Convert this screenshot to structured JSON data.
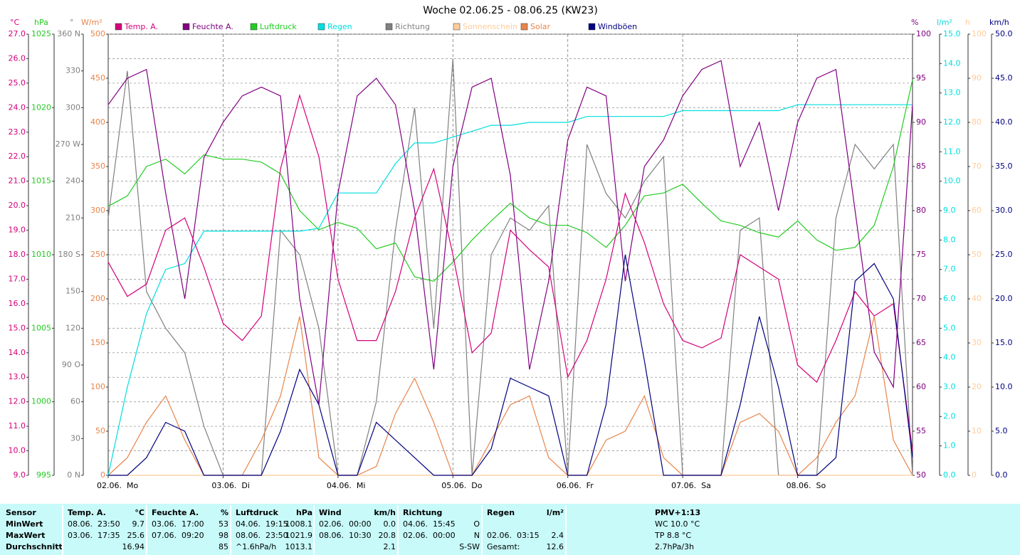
{
  "chart_data": {
    "type": "line",
    "title": "Woche 02.06.25 - 08.06.25 (KW23)",
    "grid": true,
    "xlim": [
      0,
      168
    ],
    "xticks": [
      {
        "value": 0,
        "label": "02.06.  Mo"
      },
      {
        "value": 24,
        "label": "03.06.  Di"
      },
      {
        "value": 48,
        "label": "04.06.  Mi"
      },
      {
        "value": 72,
        "label": "05.06.  Do"
      },
      {
        "value": 96,
        "label": "06.06.  Fr"
      },
      {
        "value": 120,
        "label": "07.06.  Sa"
      },
      {
        "value": 144,
        "label": "08.06.  So"
      }
    ],
    "x": [
      0,
      4,
      8,
      12,
      16,
      20,
      24,
      28,
      32,
      36,
      40,
      44,
      48,
      52,
      56,
      60,
      64,
      68,
      72,
      76,
      80,
      84,
      88,
      92,
      96,
      100,
      104,
      108,
      112,
      116,
      120,
      124,
      128,
      132,
      136,
      140,
      144,
      148,
      152,
      156,
      160,
      164,
      168
    ],
    "series": [
      {
        "name": "Temp. A.",
        "unit": "°C",
        "side": "left",
        "color": "#d4007a",
        "ylim": [
          9,
          27
        ],
        "yticks": [
          {
            "value": 9,
            "label": "9.0"
          },
          {
            "value": 10,
            "label": "10.0"
          },
          {
            "value": 11,
            "label": "11.0"
          },
          {
            "value": 12,
            "label": "12.0"
          },
          {
            "value": 13,
            "label": "13.0"
          },
          {
            "value": 14,
            "label": "14.0"
          },
          {
            "value": 15,
            "label": "15.0"
          },
          {
            "value": 16,
            "label": "16.0"
          },
          {
            "value": 17,
            "label": "17.0"
          },
          {
            "value": 18,
            "label": "18.0"
          },
          {
            "value": 19,
            "label": "19.0"
          },
          {
            "value": 20,
            "label": "20.0"
          },
          {
            "value": 21,
            "label": "21.0"
          },
          {
            "value": 22,
            "label": "22.0"
          },
          {
            "value": 23,
            "label": "23.0"
          },
          {
            "value": 24,
            "label": "24.0"
          },
          {
            "value": 25,
            "label": "25.0"
          },
          {
            "value": 26,
            "label": "26.0"
          },
          {
            "value": 27,
            "label": "27.0"
          }
        ],
        "values": [
          17.7,
          16.3,
          16.8,
          19.0,
          19.5,
          17.5,
          15.2,
          14.5,
          15.5,
          21.5,
          24.5,
          22.0,
          17.0,
          14.5,
          14.5,
          16.5,
          19.5,
          21.5,
          18.0,
          14.0,
          14.8,
          19.0,
          18.2,
          17.5,
          13.0,
          14.5,
          17.0,
          20.5,
          18.5,
          16.0,
          14.5,
          14.2,
          14.6,
          18.0,
          17.5,
          17.0,
          13.5,
          12.8,
          14.5,
          16.5,
          15.5,
          16.0,
          10.0
        ]
      },
      {
        "name": "Feuchte A.",
        "unit": "%",
        "side": "right",
        "color": "#800080",
        "ylim": [
          50,
          100
        ],
        "yticks": [
          50,
          55,
          60,
          65,
          70,
          75,
          80,
          85,
          90,
          95,
          100
        ],
        "values": [
          92,
          95,
          96,
          82,
          70,
          86,
          90,
          93,
          94,
          93,
          70,
          58,
          82,
          93,
          95,
          92,
          80,
          62,
          85,
          94,
          95,
          84,
          62,
          72,
          88,
          94,
          93,
          72,
          85,
          88,
          93,
          96,
          97,
          85,
          90,
          80,
          90,
          95,
          96,
          80,
          64,
          60,
          92
        ]
      },
      {
        "name": "Luftdruck",
        "unit": "hPa",
        "side": "left",
        "color": "#22cc22",
        "ylim": [
          995,
          1025
        ],
        "yticks": [
          995,
          1000,
          1005,
          1010,
          1015,
          1020,
          1025
        ],
        "values": [
          1013.3,
          1014.0,
          1016.0,
          1016.5,
          1015.5,
          1016.8,
          1016.5,
          1016.5,
          1016.3,
          1015.5,
          1013.0,
          1011.7,
          1012.2,
          1011.8,
          1010.4,
          1010.8,
          1008.5,
          1008.2,
          1009.5,
          1011.0,
          1012.3,
          1013.5,
          1012.5,
          1012.0,
          1012.0,
          1011.5,
          1010.5,
          1012.0,
          1014.0,
          1014.2,
          1014.8,
          1013.5,
          1012.3,
          1012.0,
          1011.5,
          1011.2,
          1012.3,
          1011.0,
          1010.3,
          1010.5,
          1012.0,
          1016.0,
          1021.9
        ]
      },
      {
        "name": "Regen",
        "unit": "l/m²",
        "side": "right",
        "color": "#00dede",
        "ylim": [
          0,
          15
        ],
        "yticks": [
          {
            "value": 0,
            "label": "0.0"
          },
          {
            "value": 1,
            "label": "1.0"
          },
          {
            "value": 2,
            "label": "2.0"
          },
          {
            "value": 3,
            "label": "3.0"
          },
          {
            "value": 4,
            "label": "4.0"
          },
          {
            "value": 5,
            "label": "5.0"
          },
          {
            "value": 6,
            "label": "6.0"
          },
          {
            "value": 7,
            "label": "7.0"
          },
          {
            "value": 8,
            "label": "8.0"
          },
          {
            "value": 9,
            "label": "9.0"
          },
          {
            "value": 10,
            "label": "10.0"
          },
          {
            "value": 11,
            "label": "11.0"
          },
          {
            "value": 12,
            "label": "12.0"
          },
          {
            "value": 13,
            "label": "13.0"
          },
          {
            "value": 14,
            "label": "14.0"
          },
          {
            "value": 15,
            "label": "15.0"
          }
        ],
        "values": [
          0,
          3.0,
          5.5,
          7.0,
          7.2,
          8.3,
          8.3,
          8.3,
          8.3,
          8.3,
          8.3,
          8.4,
          9.6,
          9.6,
          9.6,
          10.6,
          11.3,
          11.3,
          11.5,
          11.7,
          11.9,
          11.9,
          12.0,
          12.0,
          12.0,
          12.2,
          12.2,
          12.2,
          12.2,
          12.2,
          12.4,
          12.4,
          12.4,
          12.4,
          12.4,
          12.4,
          12.6,
          12.6,
          12.6,
          12.6,
          12.6,
          12.6,
          12.6
        ]
      },
      {
        "name": "Richtung",
        "unit": "°",
        "side": "left",
        "color": "#808080",
        "ylim": [
          0,
          360
        ],
        "yticks": [
          {
            "value": 0,
            "label": "0 N"
          },
          30,
          60,
          {
            "value": 90,
            "label": "90 O"
          },
          120,
          150,
          {
            "value": 180,
            "label": "180 S"
          },
          210,
          240,
          {
            "value": 270,
            "label": "270 W"
          },
          300,
          330,
          {
            "value": 360,
            "label": "360 N"
          }
        ],
        "values": [
          210,
          330,
          150,
          120,
          100,
          40,
          0,
          0,
          0,
          200,
          180,
          120,
          0,
          0,
          60,
          200,
          300,
          120,
          340,
          0,
          180,
          210,
          200,
          220,
          0,
          270,
          230,
          210,
          240,
          260,
          0,
          0,
          0,
          200,
          210,
          0,
          0,
          0,
          210,
          270,
          250,
          270,
          0
        ]
      },
      {
        "name": "Sonnenschein",
        "unit": "h",
        "side": "right",
        "color": "#ffcc99",
        "ylim": [
          0,
          100
        ],
        "yticks": [
          0,
          10,
          20,
          30,
          40,
          50,
          60,
          70,
          80,
          90,
          100
        ],
        "values": [
          0,
          0,
          0,
          0,
          0,
          0,
          0,
          0,
          0,
          0,
          0,
          0,
          0,
          0,
          0,
          0,
          0,
          0,
          0,
          0,
          0,
          0,
          0,
          0,
          0,
          0,
          0,
          0,
          0,
          0,
          0,
          0,
          0,
          0,
          0,
          0,
          0,
          0,
          0,
          0,
          0,
          0,
          0
        ]
      },
      {
        "name": "Solar",
        "unit": "W/m²",
        "side": "left",
        "color": "#e8844a",
        "ylim": [
          0,
          500
        ],
        "yticks": [
          0,
          50,
          100,
          150,
          200,
          250,
          300,
          350,
          400,
          450,
          500
        ],
        "values": [
          0,
          20,
          60,
          90,
          40,
          0,
          0,
          0,
          40,
          90,
          180,
          20,
          0,
          0,
          10,
          70,
          110,
          60,
          0,
          0,
          40,
          80,
          90,
          20,
          0,
          0,
          40,
          50,
          90,
          20,
          0,
          0,
          0,
          60,
          70,
          50,
          0,
          20,
          60,
          90,
          180,
          40,
          0
        ]
      },
      {
        "name": "Windböen",
        "unit": "km/h",
        "side": "right",
        "color": "#000080",
        "ylim": [
          0,
          50
        ],
        "yticks": [
          {
            "value": 0,
            "label": "0.0"
          },
          {
            "value": 5,
            "label": "5.0"
          },
          {
            "value": 10,
            "label": "10.0"
          },
          {
            "value": 15,
            "label": "15.0"
          },
          {
            "value": 20,
            "label": "20.0"
          },
          {
            "value": 25,
            "label": "25.0"
          },
          {
            "value": 30,
            "label": "30.0"
          },
          {
            "value": 35,
            "label": "35.0"
          },
          {
            "value": 40,
            "label": "40.0"
          },
          {
            "value": 45,
            "label": "45.0"
          },
          {
            "value": 50,
            "label": "50.0"
          }
        ],
        "values": [
          0,
          0,
          2,
          6,
          5,
          0,
          0,
          0,
          0,
          5,
          12,
          8,
          0,
          0,
          6,
          4,
          2,
          0,
          0,
          0,
          3,
          11,
          10,
          9,
          0,
          0,
          8,
          25,
          13,
          0,
          0,
          0,
          0,
          8,
          18,
          10,
          0,
          0,
          2,
          22,
          24,
          20,
          2
        ]
      }
    ]
  },
  "table": {
    "row_labels": [
      "Sensor",
      "MinWert",
      "MaxWert",
      "Durchschnitt"
    ],
    "groups": [
      {
        "header": "Temp. A.",
        "unit": "°C",
        "min_time": "08.06.  23:50",
        "min": "9.7",
        "max_time": "03.06.  17:35",
        "max": "25.6",
        "avg": "16.94"
      },
      {
        "header": "Feuchte A.",
        "unit": "%",
        "min_time": "03.06.  17:00",
        "min": "53",
        "max_time": "07.06.  09:20",
        "max": "98",
        "avg": "85"
      },
      {
        "header": "Luftdruck",
        "unit": "hPa",
        "min_time": "04.06.  19:15",
        "min": "1008.1",
        "max_time": "08.06.  23:50",
        "max": "1021.9",
        "avg_note": "^1.6hPa/h",
        "avg": "1013.1"
      },
      {
        "header": "Wind",
        "unit": "km/h",
        "min_time": "02.06.  00:00",
        "min": "0.0",
        "max_time": "08.06.  10:30",
        "max": "20.8",
        "avg": "2.1"
      },
      {
        "header": "Richtung",
        "min_time": "04.06.  15:45",
        "min": "O",
        "max_time": "02.06.  00:00",
        "max": "N",
        "avg": "S-SW"
      },
      {
        "header": "Regen",
        "unit": "l/m²",
        "max_time": "02.06.  03:15",
        "max": "2.4",
        "avg_note": "Gesamt:",
        "avg": "12.6"
      }
    ],
    "pmv": {
      "header": "PMV+1:13",
      "lines": [
        "WC 10.0 °C",
        "TP 8.8 °C",
        "2.7hPa/3h"
      ]
    }
  }
}
